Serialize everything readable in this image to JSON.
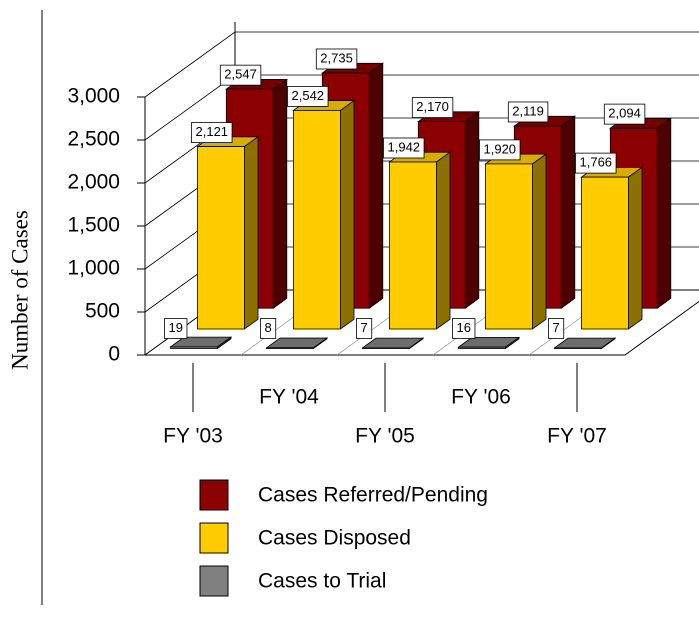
{
  "chart_data": {
    "type": "bar3d",
    "y_axis_label": "Number of Cases",
    "categories": [
      "FY '03",
      "FY '04",
      "FY '05",
      "FY '06",
      "FY '07"
    ],
    "series": [
      {
        "name": "Cases Referred/Pending",
        "color": "#8b0000",
        "values": [
          2547,
          2735,
          2170,
          2119,
          2094
        ],
        "value_labels": [
          "2,547",
          "2,735",
          "2,170",
          "2,119",
          "2,094"
        ]
      },
      {
        "name": "Cases Disposed",
        "color": "#ffcc00",
        "values": [
          2121,
          2542,
          1942,
          1920,
          1766
        ],
        "value_labels": [
          "2,121",
          "2,542",
          "1,942",
          "1,920",
          "1,766"
        ]
      },
      {
        "name": "Cases to Trial",
        "color": "#808080",
        "values": [
          19,
          8,
          7,
          16,
          7
        ]
      }
    ],
    "ylim": [
      0,
      3000
    ],
    "yticks": [
      0,
      500,
      {
        "value": 1000,
        "label": "1,000"
      },
      {
        "value": 1500,
        "label": "1,500"
      },
      {
        "value": 2000,
        "label": "2,000"
      },
      {
        "value": 2500,
        "label": "2,500"
      },
      {
        "value": 3000,
        "label": "3,000"
      }
    ],
    "grid": true
  }
}
